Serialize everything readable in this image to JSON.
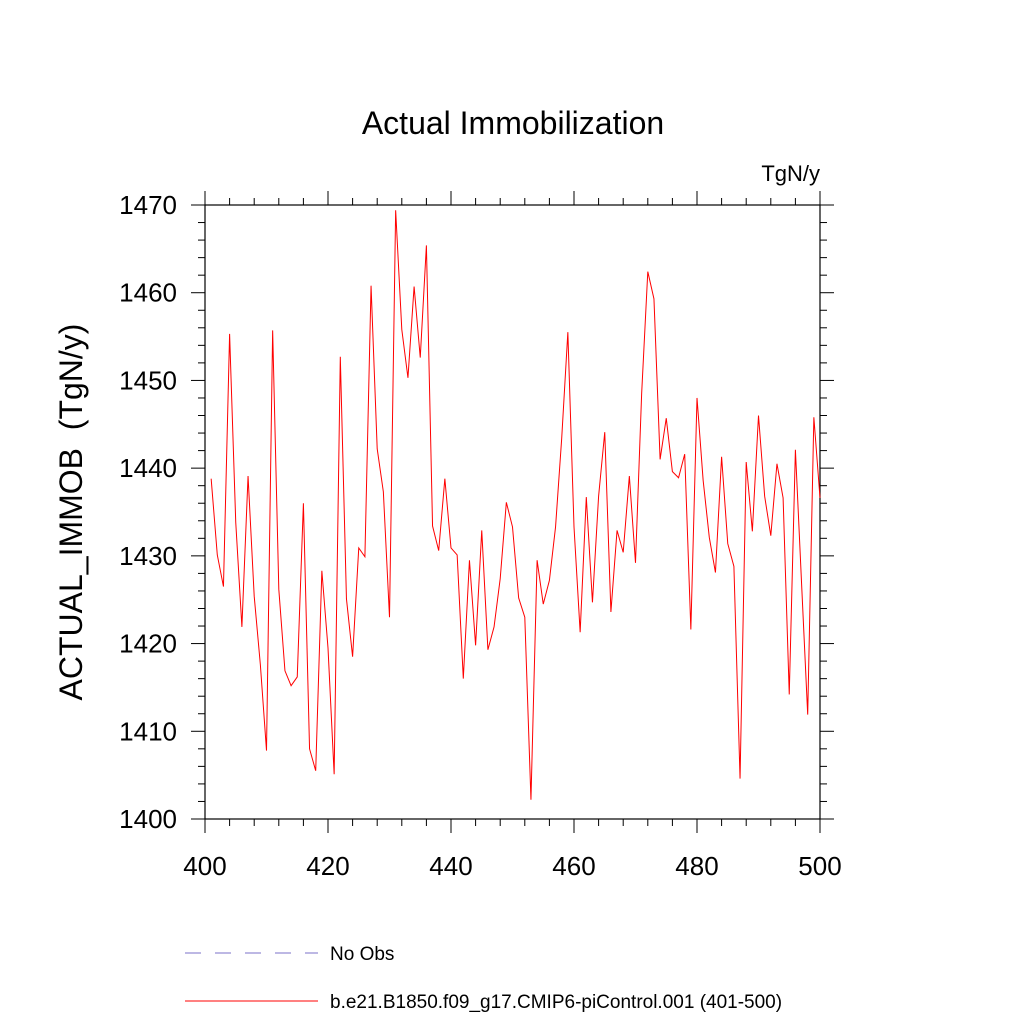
{
  "chart_data": {
    "type": "line",
    "title": "Actual Immobilization",
    "units_label": "TgN/y",
    "xlabel": "",
    "ylabel": "ACTUAL_IMMOB  (TgN/y)",
    "xlim": [
      400,
      500
    ],
    "ylim": [
      1400,
      1470
    ],
    "x_ticks": [
      400,
      420,
      440,
      460,
      480,
      500
    ],
    "y_ticks": [
      1400,
      1410,
      1420,
      1430,
      1440,
      1450,
      1460,
      1470
    ],
    "grid": false,
    "legend_position": "bottom",
    "series": [
      {
        "name": "No Obs",
        "color": "#7b72c8",
        "style": "dashed",
        "x": [],
        "values": []
      },
      {
        "name": "b.e21.B1850.f09_g17.CMIP6-piControl.001 (401-500)",
        "color": "#ff0000",
        "style": "solid",
        "x": [
          401,
          402,
          403,
          404,
          405,
          406,
          407,
          408,
          409,
          410,
          411,
          412,
          413,
          414,
          415,
          416,
          417,
          418,
          419,
          420,
          421,
          422,
          423,
          424,
          425,
          426,
          427,
          428,
          429,
          430,
          431,
          432,
          433,
          434,
          435,
          436,
          437,
          438,
          439,
          440,
          441,
          442,
          443,
          444,
          445,
          446,
          447,
          448,
          449,
          450,
          451,
          452,
          453,
          454,
          455,
          456,
          457,
          458,
          459,
          460,
          461,
          462,
          463,
          464,
          465,
          466,
          467,
          468,
          469,
          470,
          471,
          472,
          473,
          474,
          475,
          476,
          477,
          478,
          479,
          480,
          481,
          482,
          483,
          484,
          485,
          486,
          487,
          488,
          489,
          490,
          491,
          492,
          493,
          494,
          495,
          496,
          497,
          498,
          499,
          500
        ],
        "values": [
          1438.8,
          1430.1,
          1426.5,
          1455.3,
          1433.8,
          1421.9,
          1439.1,
          1425.4,
          1417.6,
          1407.8,
          1455.7,
          1426.2,
          1416.9,
          1415.2,
          1416.2,
          1436.0,
          1408.0,
          1405.5,
          1428.3,
          1419.5,
          1405.1,
          1452.7,
          1425.1,
          1418.5,
          1430.9,
          1429.9,
          1460.8,
          1442.2,
          1437.3,
          1423.0,
          1469.4,
          1455.8,
          1450.3,
          1460.7,
          1452.6,
          1465.4,
          1433.4,
          1430.6,
          1438.8,
          1430.9,
          1430.1,
          1416.0,
          1429.5,
          1419.8,
          1432.9,
          1419.3,
          1421.9,
          1427.4,
          1436.1,
          1433.3,
          1425.2,
          1423.0,
          1402.2,
          1429.5,
          1424.5,
          1427.2,
          1433.3,
          1443.4,
          1455.5,
          1433.3,
          1421.3,
          1436.7,
          1424.7,
          1436.8,
          1444.1,
          1423.6,
          1432.9,
          1430.4,
          1439.1,
          1429.2,
          1448.5,
          1462.4,
          1459.3,
          1441.0,
          1445.7,
          1439.6,
          1438.9,
          1441.6,
          1421.6,
          1448.0,
          1438.6,
          1432.1,
          1428.1,
          1441.3,
          1431.4,
          1428.8,
          1404.6,
          1440.7,
          1432.8,
          1446.0,
          1436.8,
          1432.3,
          1440.5,
          1436.6,
          1414.2,
          1442.1,
          1426.9,
          1411.9,
          1445.8,
          1436.6
        ]
      }
    ]
  }
}
